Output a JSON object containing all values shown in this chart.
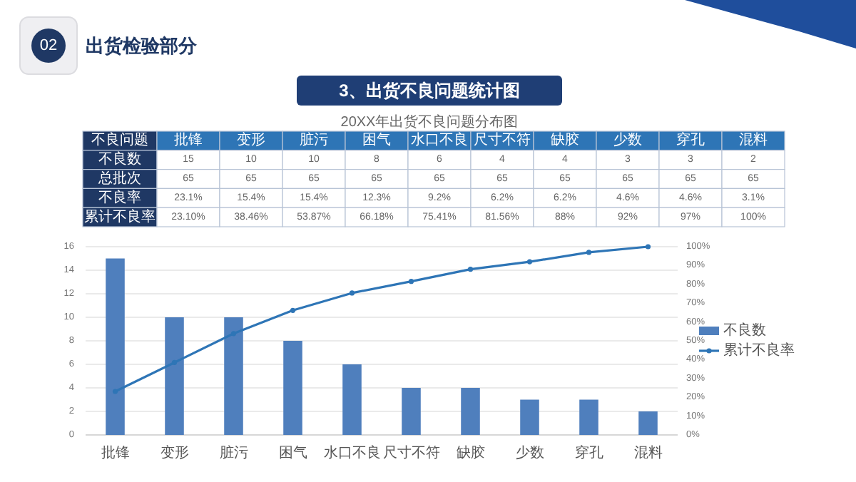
{
  "chart_data": {
    "type": "bar",
    "title": "3、出货不良问题统计图",
    "subtitle": "20XX年出货不良问题分布图",
    "categories": [
      "批锋",
      "变形",
      "脏污",
      "困气",
      "水口不良",
      "尺寸不符",
      "缺胶",
      "少数",
      "穿孔",
      "混料"
    ],
    "series": [
      {
        "name": "不良数",
        "color": "#4f7fbd",
        "values": [
          15,
          10,
          10,
          8,
          6,
          4,
          4,
          3,
          3,
          2
        ]
      },
      {
        "name": "累计不良率",
        "type": "line",
        "axis": "y2",
        "color": "#2e75b6",
        "values": [
          23.1,
          38.46,
          53.87,
          66.18,
          75.41,
          81.56,
          88,
          92,
          97,
          100
        ]
      }
    ],
    "ylim": [
      0,
      16
    ],
    "yticks": [
      0,
      2,
      4,
      6,
      8,
      10,
      12,
      14,
      16
    ],
    "y2lim": [
      0,
      100
    ],
    "y2ticks": [
      {
        "value": 0,
        "label": "0%"
      },
      {
        "value": 10,
        "label": "10%"
      },
      {
        "value": 20,
        "label": "20%"
      },
      {
        "value": 30,
        "label": "30%"
      },
      {
        "value": 40,
        "label": "40%"
      },
      {
        "value": 50,
        "label": "50%"
      },
      {
        "value": 60,
        "label": "60%"
      },
      {
        "value": 70,
        "label": "70%"
      },
      {
        "value": 80,
        "label": "80%"
      },
      {
        "value": 90,
        "label": "90%"
      },
      {
        "value": 100,
        "label": "100%"
      }
    ],
    "annotations": [
      "02",
      "出货检验部分",
      "不良问题",
      "不良数",
      "15",
      "10",
      "10",
      "8",
      "6",
      "4",
      "4",
      "3",
      "3",
      "2",
      "总批次",
      "65",
      "65",
      "65",
      "65",
      "65",
      "65",
      "65",
      "65",
      "65",
      "65",
      "不良率",
      "23.1%",
      "15.4%",
      "15.4%",
      "12.3%",
      "9.2%",
      "6.2%",
      "6.2%",
      "4.6%",
      "4.6%",
      "3.1%",
      "累计不良率",
      "23.10%",
      "38.46%",
      "53.87%",
      "66.18%",
      "75.41%",
      "81.56%",
      "88%",
      "92%",
      "97%",
      "100%"
    ],
    "grid": "y",
    "legend": "right",
    "marker": "circle"
  }
}
